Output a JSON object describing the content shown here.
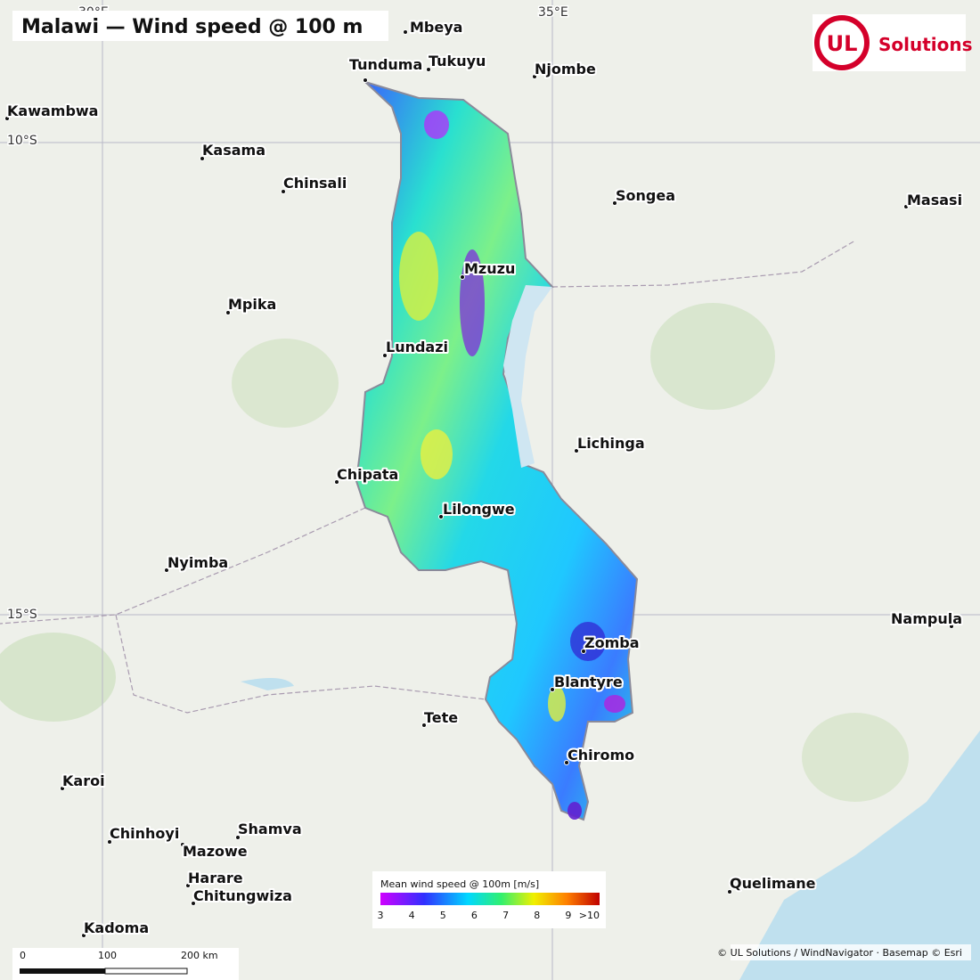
{
  "title": "Malawi — Wind speed @ 100 m",
  "logo": {
    "mark": "UL",
    "text": "Solutions"
  },
  "graticule": {
    "longitudes": [
      "30°E",
      "35°E"
    ],
    "latitudes": [
      "10°S",
      "15°S"
    ]
  },
  "cities": [
    "Mbeya",
    "Tunduma",
    "Tukuyu",
    "Njombe",
    "Kawambwa",
    "Kasama",
    "Chinsali",
    "Songea",
    "Masasi",
    "Mzuzu",
    "Mpika",
    "Lundazi",
    "Lichinga",
    "Chipata",
    "Lilongwe",
    "Nyimba",
    "Nampula",
    "Zomba",
    "Blantyre",
    "Tete",
    "Chiromo",
    "Karoi",
    "Chinhoyi",
    "Shamva",
    "Mazowe",
    "Harare",
    "Chitungwiza",
    "Quelimane",
    "Kadoma"
  ],
  "legend": {
    "title": "Mean wind speed @ 100m [m/s]",
    "ticks": [
      "3",
      "4",
      "5",
      "6",
      "7",
      "8",
      "9",
      ">10"
    ]
  },
  "scale_bar": {
    "labels": [
      "0",
      "100",
      "200 km"
    ]
  },
  "attribution": "© UL Solutions / WindNavigator · Basemap © Esri"
}
